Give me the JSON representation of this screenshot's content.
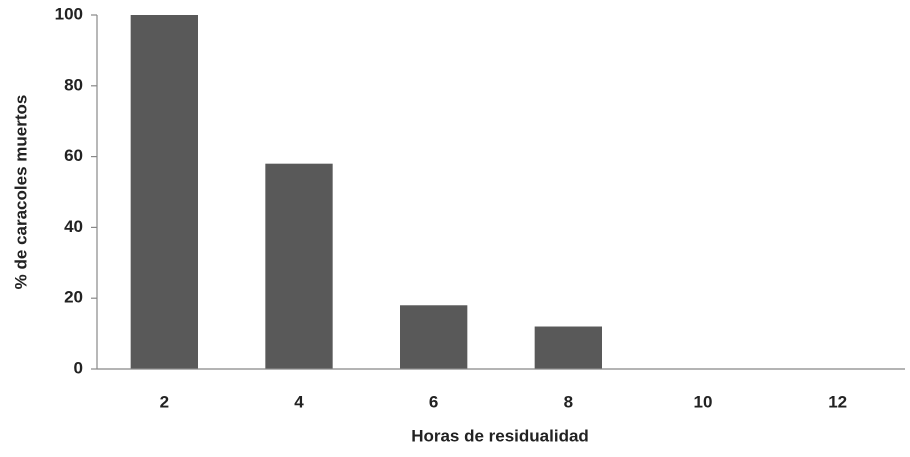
{
  "chart_data": {
    "type": "bar",
    "x_label": "Horas de residualidad",
    "y_label": "% de caracoles muertos",
    "categories": [
      2,
      4,
      6,
      8,
      10,
      12
    ],
    "values": [
      100,
      58,
      18,
      12,
      0,
      0
    ],
    "color": "#595959",
    "ylim": [
      0,
      100
    ],
    "yticks": [
      0,
      20,
      40,
      60,
      80,
      100
    ],
    "grid": false
  }
}
